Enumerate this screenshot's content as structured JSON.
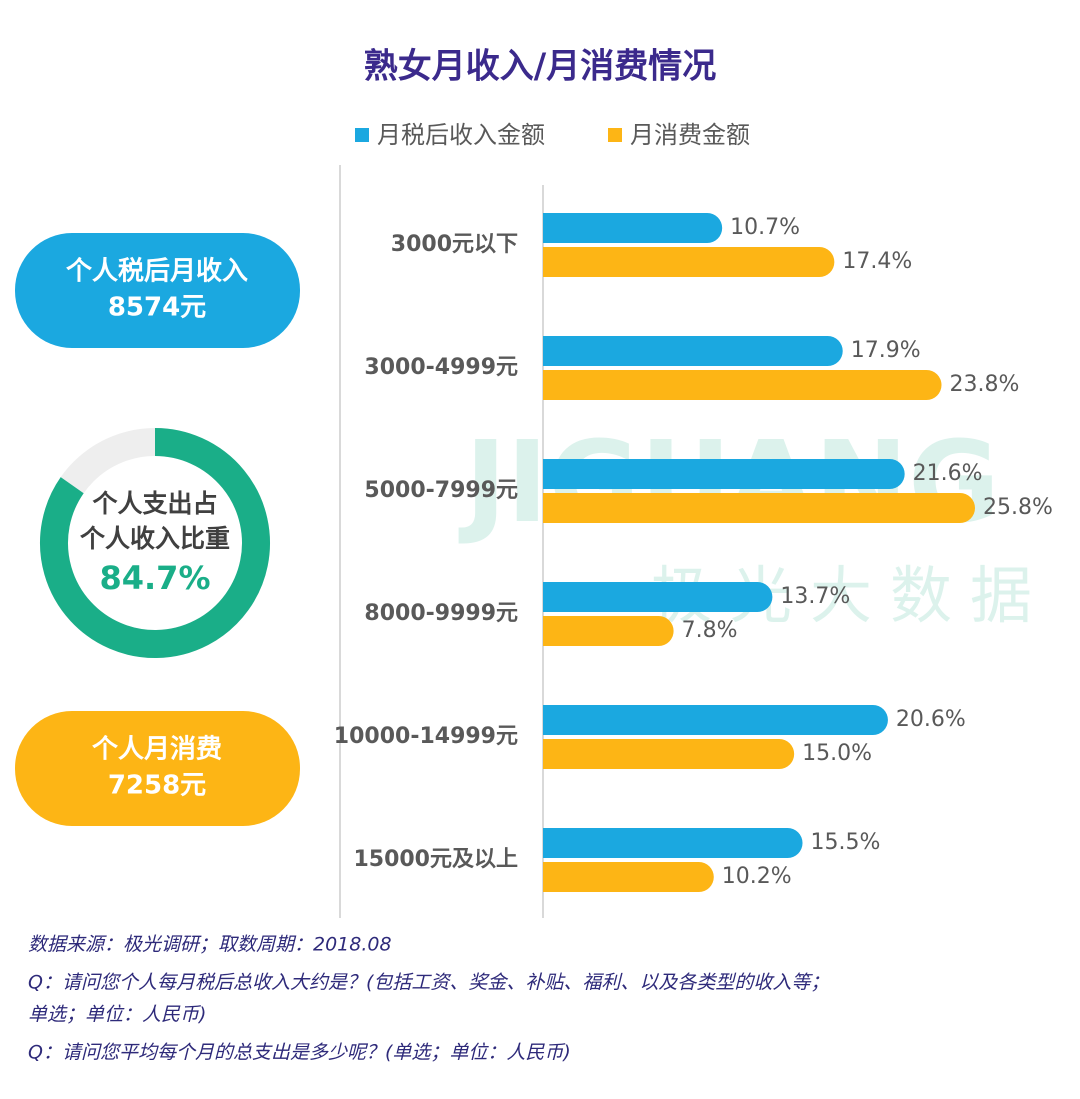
{
  "chart_data": {
    "type": "bar",
    "orientation": "horizontal",
    "title": "熟女月收入/月消费情况",
    "categories": [
      "3000元以下",
      "3000-4999元",
      "5000-7999元",
      "8000-9999元",
      "10000-14999元",
      "15000元及以上"
    ],
    "series": [
      {
        "name": "月税后收入金额",
        "color": "#1ba8e0",
        "values": [
          10.7,
          17.9,
          21.6,
          13.7,
          20.6,
          15.5
        ],
        "value_labels": [
          "10.7%",
          "17.9%",
          "21.6%",
          "13.7%",
          "20.6%",
          "15.5%"
        ]
      },
      {
        "name": "月消费金额",
        "color": "#fdb515",
        "values": [
          17.4,
          23.8,
          25.8,
          7.8,
          15.0,
          10.2
        ],
        "value_labels": [
          "17.4%",
          "23.8%",
          "25.8%",
          "7.8%",
          "15.0%",
          "10.2%"
        ]
      }
    ]
  },
  "income": {
    "label": "个人税后月收入",
    "amount": "8574元",
    "color": "#1ba8e0"
  },
  "expense": {
    "label": "个人月消费",
    "amount": "7258元",
    "color": "#fdb515"
  },
  "ratio": {
    "lines": [
      "个人支出占",
      "个人收入比重"
    ],
    "value": 84.7,
    "value_label": "84.7%",
    "color": "#1aae88"
  },
  "watermark": {
    "brand": "JIGUANG",
    "subtitle": "极光大数据"
  },
  "notes": [
    [
      "数据来源：极光调研；取数周期：2018.08"
    ],
    [
      "Q：请问您个人每月税后总收入大约是？(包括工资、奖金、补贴、福利、以及各类型的收入等；",
      "单选；单位：人民币)"
    ],
    [
      "Q：请问您平均每个月的总支出是多少呢？(单选；单位：人民币)"
    ]
  ]
}
